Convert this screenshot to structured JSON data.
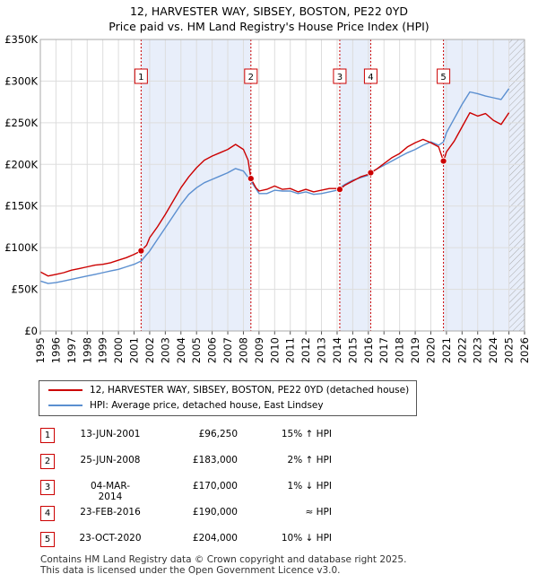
{
  "title": {
    "line1": "12, HARVESTER WAY, SIBSEY, BOSTON, PE22 0YD",
    "line2": "Price paid vs. HM Land Registry's House Price Index (HPI)"
  },
  "legend": {
    "property": "12, HARVESTER WAY, SIBSEY, BOSTON, PE22 0YD (detached house)",
    "hpi": "HPI: Average price, detached house, East Lindsey"
  },
  "colors": {
    "property": "#cc0000",
    "hpi": "#5b8fd0",
    "band": "#e8eefa",
    "grid": "#dddddd",
    "marker_border": "#cc0000"
  },
  "sales": [
    {
      "num": "1",
      "date": "13-JUN-2001",
      "price": "£96,250",
      "hpi": "15% ↑ HPI"
    },
    {
      "num": "2",
      "date": "25-JUN-2008",
      "price": "£183,000",
      "hpi": "2% ↑ HPI"
    },
    {
      "num": "3",
      "date": "04-MAR-2014",
      "price": "£170,000",
      "hpi": "1% ↓ HPI"
    },
    {
      "num": "4",
      "date": "23-FEB-2016",
      "price": "£190,000",
      "hpi": "≈ HPI"
    },
    {
      "num": "5",
      "date": "23-OCT-2020",
      "price": "£204,000",
      "hpi": "10% ↓ HPI"
    }
  ],
  "footer": {
    "line1": "Contains HM Land Registry data © Crown copyright and database right 2025.",
    "line2": "This data is licensed under the Open Government Licence v3.0."
  },
  "chart_data": {
    "type": "line",
    "title": "12, HARVESTER WAY, SIBSEY, BOSTON, PE22 0YD — Price paid vs. HM Land Registry's House Price Index (HPI)",
    "xlabel": "",
    "ylabel": "",
    "xlim": [
      1995,
      2026
    ],
    "ylim": [
      0,
      350000
    ],
    "x_ticks": [
      1995,
      1996,
      1997,
      1998,
      1999,
      2000,
      2001,
      2002,
      2003,
      2004,
      2005,
      2006,
      2007,
      2008,
      2009,
      2010,
      2011,
      2012,
      2013,
      2014,
      2015,
      2016,
      2017,
      2018,
      2019,
      2020,
      2021,
      2022,
      2023,
      2024,
      2025,
      2026
    ],
    "y_ticks": [
      {
        "value": 0,
        "label": "£0"
      },
      {
        "value": 50000,
        "label": "£50K"
      },
      {
        "value": 100000,
        "label": "£100K"
      },
      {
        "value": 150000,
        "label": "£150K"
      },
      {
        "value": 200000,
        "label": "£200K"
      },
      {
        "value": 250000,
        "label": "£250K"
      },
      {
        "value": 300000,
        "label": "£300K"
      },
      {
        "value": 350000,
        "label": "£350K"
      }
    ],
    "grid": true,
    "shaded_periods": [
      [
        2001.45,
        2008.48
      ],
      [
        2014.17,
        2016.15
      ],
      [
        2020.81,
        2026
      ]
    ],
    "hatched_period": [
      2025.0,
      2026.0
    ],
    "sale_markers": [
      {
        "label": "1",
        "x": 2001.45,
        "y": 96250
      },
      {
        "label": "2",
        "x": 2008.48,
        "y": 183000
      },
      {
        "label": "3",
        "x": 2014.17,
        "y": 170000
      },
      {
        "label": "4",
        "x": 2016.15,
        "y": 190000
      },
      {
        "label": "5",
        "x": 2020.81,
        "y": 204000
      }
    ],
    "series": [
      {
        "name": "12, HARVESTER WAY, SIBSEY, BOSTON, PE22 0YD (detached house)",
        "color": "#cc0000",
        "x": [
          1995,
          1995.5,
          1996,
          1996.5,
          1997,
          1997.5,
          1998,
          1998.5,
          1999,
          1999.5,
          2000,
          2000.5,
          2001,
          2001.45,
          2001.8,
          2002,
          2002.5,
          2003,
          2003.5,
          2004,
          2004.5,
          2005,
          2005.5,
          2006,
          2006.5,
          2007,
          2007.5,
          2008,
          2008.3,
          2008.48,
          2008.8,
          2009,
          2009.5,
          2010,
          2010.5,
          2011,
          2011.5,
          2012,
          2012.5,
          2013,
          2013.5,
          2014,
          2014.17,
          2014.5,
          2015,
          2015.5,
          2016,
          2016.15,
          2016.5,
          2017,
          2017.5,
          2018,
          2018.5,
          2019,
          2019.5,
          2020,
          2020.5,
          2020.81,
          2021,
          2021.5,
          2022,
          2022.5,
          2023,
          2023.5,
          2024,
          2024.5,
          2025
        ],
        "y": [
          71000,
          66000,
          68000,
          70000,
          73000,
          75000,
          77000,
          79000,
          80000,
          82000,
          85000,
          88000,
          92000,
          96250,
          103000,
          112000,
          125000,
          140000,
          156000,
          172000,
          185000,
          196000,
          205000,
          210000,
          214000,
          218000,
          224000,
          218000,
          205000,
          183000,
          172000,
          168000,
          170000,
          174000,
          170000,
          171000,
          167000,
          170000,
          167000,
          169000,
          171000,
          171000,
          170000,
          175000,
          180000,
          185000,
          188000,
          190000,
          194000,
          201000,
          208000,
          213000,
          221000,
          226000,
          230000,
          226000,
          221000,
          204000,
          215000,
          228000,
          245000,
          262000,
          258000,
          261000,
          253000,
          248000,
          262000
        ]
      },
      {
        "name": "HPI: Average price, detached house, East Lindsey",
        "color": "#5b8fd0",
        "x": [
          1995,
          1995.5,
          1996,
          1996.5,
          1997,
          1997.5,
          1998,
          1998.5,
          1999,
          1999.5,
          2000,
          2000.5,
          2001,
          2001.45,
          2002,
          2002.5,
          2003,
          2003.5,
          2004,
          2004.5,
          2005,
          2005.5,
          2006,
          2006.5,
          2007,
          2007.5,
          2008,
          2008.48,
          2009,
          2009.5,
          2010,
          2010.5,
          2011,
          2011.5,
          2012,
          2012.5,
          2013,
          2013.5,
          2014,
          2014.17,
          2014.5,
          2015,
          2015.5,
          2016,
          2016.15,
          2016.5,
          2017,
          2017.5,
          2018,
          2018.5,
          2019,
          2019.5,
          2020,
          2020.5,
          2020.81,
          2021,
          2021.5,
          2022,
          2022.5,
          2023,
          2023.5,
          2024,
          2024.5,
          2025
        ],
        "y": [
          60000,
          57000,
          58000,
          60000,
          62000,
          64000,
          66000,
          68000,
          70000,
          72000,
          74000,
          77000,
          80000,
          84000,
          96000,
          110000,
          124000,
          138000,
          152000,
          164000,
          172000,
          178000,
          182000,
          186000,
          190000,
          195000,
          192000,
          180000,
          165000,
          165000,
          169000,
          168000,
          168000,
          165000,
          167000,
          164000,
          165000,
          167000,
          169000,
          172000,
          176000,
          181000,
          184000,
          187000,
          190000,
          194000,
          199000,
          204000,
          209000,
          214000,
          218000,
          223000,
          227000,
          223000,
          227000,
          238000,
          255000,
          272000,
          287000,
          285000,
          282000,
          280000,
          278000,
          291000
        ]
      }
    ]
  }
}
